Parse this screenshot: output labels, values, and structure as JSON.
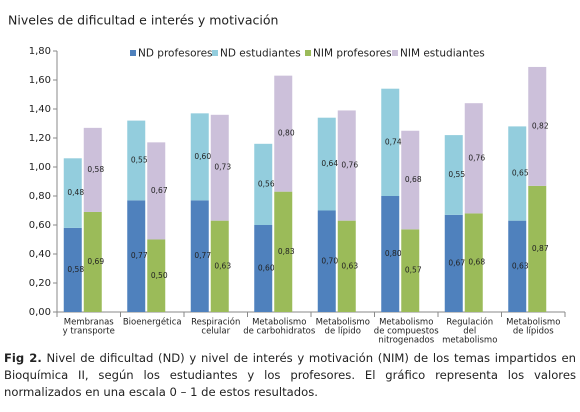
{
  "chart_data": {
    "type": "stacked_bar",
    "title": "Niveles de dificultad e interés y motivación",
    "categories": [
      [
        "Membranas",
        "y transporte"
      ],
      [
        "Bioenergética"
      ],
      [
        "Respiración",
        "celular"
      ],
      [
        "Metabolismo",
        "de carbohidratos"
      ],
      [
        "Metabolismo",
        "de lípido"
      ],
      [
        "Metabolismo",
        "de compuestos",
        "nitrogenados"
      ],
      [
        "Regulación",
        "del",
        "metabolismo"
      ],
      [
        "Metabolismo",
        "de lípidos"
      ]
    ],
    "series": [
      {
        "name": "ND profesores",
        "stack": "ND",
        "color": "#4f81bd",
        "values": [
          0.58,
          0.77,
          0.77,
          0.6,
          0.7,
          0.8,
          0.67,
          0.63
        ],
        "value_labels": [
          "0,58",
          "0,77",
          "0,77",
          "0,60",
          "0,70",
          "0,80",
          "0,67",
          "0,63"
        ]
      },
      {
        "name": "ND estudiantes",
        "stack": "ND",
        "color": "#93cddd",
        "values": [
          0.48,
          0.55,
          0.6,
          0.56,
          0.64,
          0.74,
          0.55,
          0.65
        ],
        "value_labels": [
          "0,48",
          "0,55",
          "0,60",
          "0,56",
          "0,64",
          "0,74",
          "0,55",
          "0,65"
        ]
      },
      {
        "name": "NIM profesores",
        "stack": "NIM",
        "color": "#9bbb59",
        "values": [
          0.69,
          0.5,
          0.63,
          0.83,
          0.63,
          0.57,
          0.68,
          0.87
        ],
        "value_labels": [
          "0,69",
          "0,50",
          "0,63",
          "0,83",
          "0,63",
          "0,57",
          "0,68",
          "0,87"
        ]
      },
      {
        "name": "NIM estudiantes",
        "stack": "NIM",
        "color": "#ccc0da",
        "values": [
          0.58,
          0.67,
          0.73,
          0.8,
          0.76,
          0.68,
          0.76,
          0.82
        ],
        "value_labels": [
          "0,58",
          "0,67",
          "0,73",
          "0,80",
          "0,76",
          "0,68",
          "0,76",
          "0,82"
        ]
      }
    ],
    "ylim": [
      0,
      1.8
    ],
    "yticks": [
      {
        "value": 0,
        "label": "0,00"
      },
      {
        "value": 0.2,
        "label": "0,20"
      },
      {
        "value": 0.4,
        "label": "0,40"
      },
      {
        "value": 0.6,
        "label": "0,60"
      },
      {
        "value": 0.8,
        "label": "0,80"
      },
      {
        "value": 1.0,
        "label": "1,00"
      },
      {
        "value": 1.2,
        "label": "1,20"
      },
      {
        "value": 1.4,
        "label": "1,40"
      },
      {
        "value": 1.6,
        "label": "1,60"
      },
      {
        "value": 1.8,
        "label": "1,80"
      }
    ],
    "grid": false,
    "legend": "top"
  },
  "caption": {
    "label": "Fig 2.",
    "text": "Nivel de dificultad (ND) y nivel de interés y motivación (NIM) de los temas impartidos en Bioquímica II, según los estudiantes y los profesores. El gráfico representa los valores normalizados en una escala 0 – 1 de estos resultados."
  }
}
